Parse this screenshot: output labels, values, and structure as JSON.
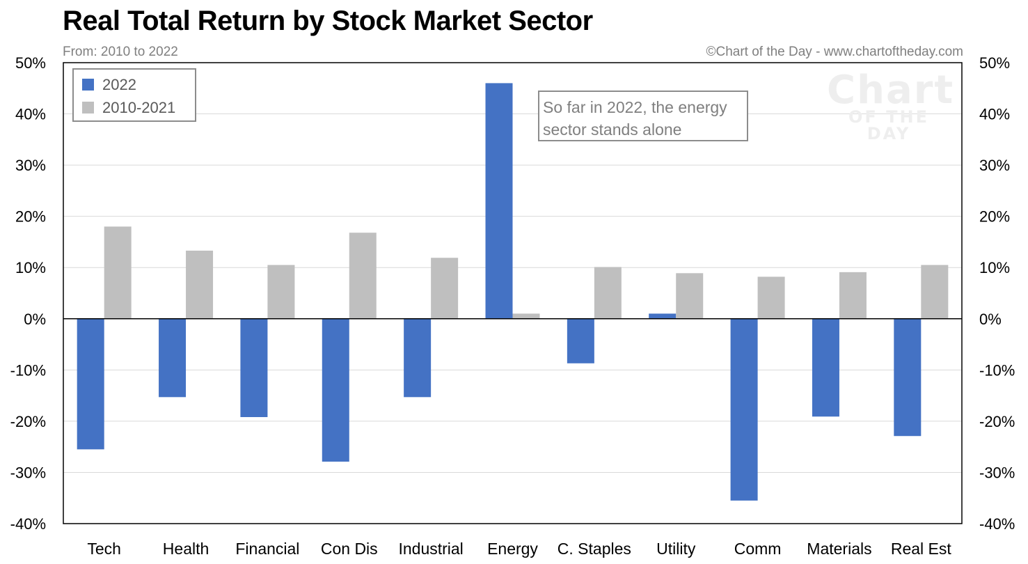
{
  "header": {
    "title": "Real Total Return by Stock Market Sector",
    "subtitle": "From: 2010 to 2022",
    "credit": "©Chart of the Day - www.chartoftheday.com"
  },
  "logo": {
    "main": "Chart",
    "sub": "OF THE DAY"
  },
  "annotation": {
    "line1": "So far in 2022, the energy",
    "line2": "sector stands alone"
  },
  "chart_data": {
    "type": "bar",
    "title": "Real Total Return by Stock Market Sector",
    "subtitle": "From: 2010 to 2022",
    "categories": [
      "Tech",
      "Health",
      "Financial",
      "Con Dis",
      "Industrial",
      "Energy",
      "C. Staples",
      "Utility",
      "Comm",
      "Materials",
      "Real Est"
    ],
    "series": [
      {
        "name": "2022",
        "color": "#4472c4",
        "values": [
          -25.5,
          -15.3,
          -19.2,
          -27.9,
          -15.3,
          46.0,
          -8.7,
          1.0,
          -35.5,
          -19.1,
          -22.9
        ]
      },
      {
        "name": "2010-2021",
        "color": "#bfbfbf",
        "values": [
          18.0,
          13.3,
          10.5,
          16.8,
          11.9,
          1.0,
          10.1,
          8.9,
          8.2,
          9.1,
          10.5
        ]
      }
    ],
    "yticks": [
      "50%",
      "40%",
      "30%",
      "20%",
      "10%",
      "0%",
      "-10%",
      "-20%",
      "-30%",
      "-40%"
    ],
    "ytick_values": [
      50,
      40,
      30,
      20,
      10,
      0,
      -10,
      -20,
      -30,
      -40
    ],
    "ylim": [
      -40,
      50
    ],
    "grid": true,
    "legend_position": "top-left",
    "secondary_y_axis": true
  }
}
